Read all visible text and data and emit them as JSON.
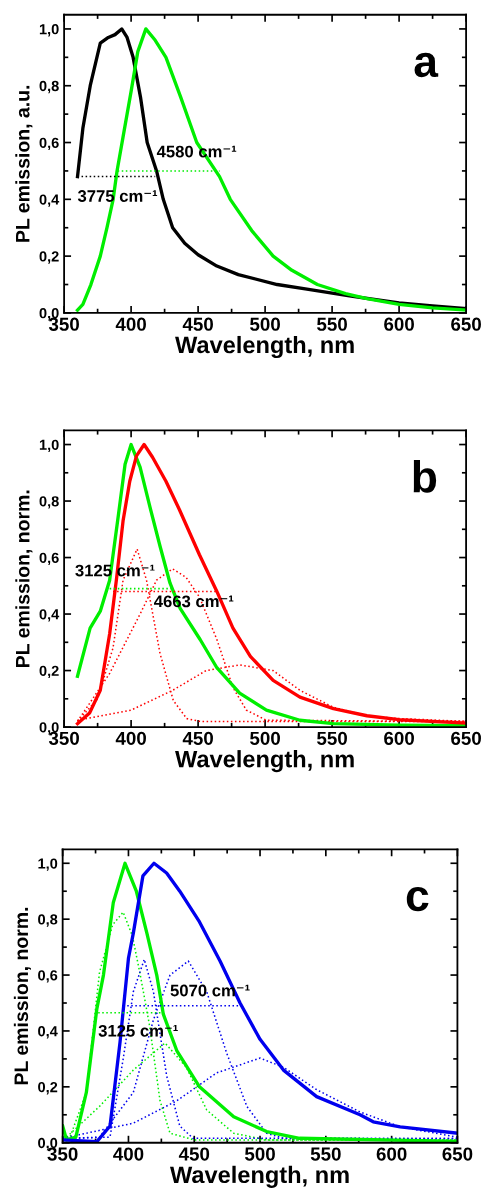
{
  "chart_data": [
    {
      "type": "line",
      "xlabel": "Wavelength, nm",
      "ylabel": "PL emission, a.u.",
      "xlim": [
        350,
        650
      ],
      "ylim": [
        0,
        1.05
      ],
      "xticks": [
        350,
        400,
        450,
        500,
        550,
        600,
        650
      ],
      "yticks": [
        {
          "value": 0,
          "label": "0,0"
        },
        {
          "value": 0.2,
          "label": "0,2"
        },
        {
          "value": 0.4,
          "label": "0,4"
        },
        {
          "value": 0.6,
          "label": "0,6"
        },
        {
          "value": 0.8,
          "label": "0,8"
        },
        {
          "value": 1.0,
          "label": "1,0"
        }
      ],
      "annotations": [
        "a",
        {
          "text": "4580 cm⁻¹",
          "x": 418,
          "y": 0.48
        },
        {
          "text": "3775 cm⁻¹",
          "x": 360,
          "y": 0.48
        }
      ],
      "series": [
        {
          "color": "#000000",
          "line_style": "solid",
          "x": [
            360,
            364,
            369.5,
            377,
            383,
            388,
            393,
            397,
            401.5,
            407,
            412,
            419,
            424,
            431,
            440,
            450,
            464,
            480,
            509,
            530,
            563,
            600,
            625,
            650
          ],
          "values": [
            0.48,
            0.65,
            0.8,
            0.95,
            0.97,
            0.98,
            1.0,
            0.97,
            0.9,
            0.76,
            0.6,
            0.5,
            0.4,
            0.3,
            0.245,
            0.205,
            0.165,
            0.135,
            0.1,
            0.085,
            0.06,
            0.035,
            0.025,
            0.015
          ]
        },
        {
          "color": "#00ee00",
          "line_style": "solid",
          "x": [
            360,
            364,
            370,
            377,
            382,
            386.6,
            389.5,
            394,
            400,
            405,
            411,
            418,
            426,
            437,
            449,
            466,
            474,
            490,
            506,
            520,
            539,
            560,
            576,
            600,
            625,
            650
          ],
          "values": [
            0.01,
            0.03,
            0.1,
            0.2,
            0.3,
            0.4,
            0.5,
            0.62,
            0.78,
            0.92,
            1.0,
            0.96,
            0.9,
            0.76,
            0.6,
            0.48,
            0.4,
            0.29,
            0.2,
            0.15,
            0.1,
            0.068,
            0.05,
            0.03,
            0.018,
            0.01
          ]
        },
        {
          "color": "#000000",
          "line_style": "dotted",
          "x": [
            360,
            418
          ],
          "values": [
            0.48,
            0.48
          ]
        },
        {
          "color": "#00ee00",
          "line_style": "dotted",
          "x": [
            390,
            466
          ],
          "values": [
            0.5,
            0.5
          ]
        }
      ]
    },
    {
      "type": "line",
      "xlabel": "Wavelength, nm",
      "ylabel": "PL emission, norm.",
      "xlim": [
        350,
        650
      ],
      "ylim": [
        0,
        1.05
      ],
      "xticks": [
        350,
        400,
        450,
        500,
        550,
        600,
        650
      ],
      "yticks": [
        {
          "value": 0,
          "label": "0,0"
        },
        {
          "value": 0.2,
          "label": "0,2"
        },
        {
          "value": 0.4,
          "label": "0,4"
        },
        {
          "value": 0.6,
          "label": "0,6"
        },
        {
          "value": 0.8,
          "label": "0,8"
        },
        {
          "value": 1.0,
          "label": "1,0"
        }
      ],
      "annotations": [
        "b",
        {
          "text": "3125 cm⁻¹",
          "x": 384,
          "y": 0.49
        },
        "4663 cm⁻¹"
      ],
      "series": [
        {
          "color": "#ff0000",
          "line_style": "dotted",
          "x": [
            360,
            375,
            386.5,
            394,
            404.5,
            411.5,
            421.6,
            431.5,
            441.5,
            451.5,
            650
          ],
          "values": [
            0.02,
            0.1,
            0.28,
            0.52,
            0.63,
            0.52,
            0.26,
            0.094,
            0.03,
            0.02,
            0.02
          ]
        },
        {
          "color": "#ff0000",
          "line_style": "dotted",
          "x": [
            360,
            384,
            406.7,
            419,
            431,
            441,
            451,
            464,
            476,
            486,
            501,
            650
          ],
          "values": [
            0.02,
            0.19,
            0.4,
            0.52,
            0.56,
            0.53,
            0.46,
            0.31,
            0.14,
            0.06,
            0.024,
            0.02
          ]
        },
        {
          "color": "#ff0000",
          "line_style": "dotted",
          "x": [
            360,
            400,
            431,
            456,
            481,
            506,
            526,
            551,
            576,
            600,
            650
          ],
          "values": [
            0.024,
            0.06,
            0.13,
            0.2,
            0.22,
            0.2,
            0.13,
            0.07,
            0.04,
            0.03,
            0.02
          ]
        },
        {
          "color": "#00ee00",
          "line_style": "solid",
          "x": [
            360,
            369.4,
            377,
            384,
            390.5,
            395.5,
            400,
            406.7,
            414,
            421.6,
            429,
            436.6,
            451.5,
            464,
            481,
            501,
            526,
            551,
            600,
            650
          ],
          "values": [
            0.18,
            0.35,
            0.41,
            0.52,
            0.75,
            0.93,
            1.0,
            0.92,
            0.78,
            0.64,
            0.51,
            0.42,
            0.31,
            0.21,
            0.12,
            0.06,
            0.024,
            0.012,
            0.007,
            0.005
          ]
        },
        {
          "color": "#ff0000",
          "line_style": "solid",
          "x": [
            360,
            369,
            377,
            384,
            389,
            394,
            399,
            404,
            409.7,
            416,
            426,
            436,
            451,
            464,
            476,
            489,
            506,
            526,
            551,
            576,
            600,
            650
          ],
          "values": [
            0.012,
            0.05,
            0.13,
            0.33,
            0.52,
            0.73,
            0.87,
            0.96,
            1.0,
            0.955,
            0.87,
            0.77,
            0.61,
            0.48,
            0.35,
            0.25,
            0.165,
            0.106,
            0.065,
            0.04,
            0.026,
            0.014
          ]
        },
        {
          "color": "#00ee00",
          "line_style": "dotted",
          "x": [
            384,
            431
          ],
          "values": [
            0.49,
            0.49
          ]
        },
        {
          "color": "#ff0000",
          "line_style": "dotted",
          "x": [
            386.5,
            465
          ],
          "values": [
            0.48,
            0.48
          ]
        }
      ]
    },
    {
      "type": "line",
      "xlabel": "Wavelength, nm",
      "ylabel": "PL emission, norm.",
      "xlim": [
        350,
        650
      ],
      "ylim": [
        0,
        1.05
      ],
      "xticks": [
        350,
        400,
        450,
        500,
        550,
        600,
        650
      ],
      "yticks": [
        {
          "value": 0,
          "label": "0,0"
        },
        {
          "value": 0.2,
          "label": "0,2"
        },
        {
          "value": 0.4,
          "label": "0,4"
        },
        {
          "value": 0.6,
          "label": "0,6"
        },
        {
          "value": 0.8,
          "label": "0,8"
        },
        {
          "value": 1.0,
          "label": "1,0"
        }
      ],
      "annotations": [
        "c",
        "5070 cm⁻¹",
        {
          "text": "3125 cm⁻¹",
          "x": 377,
          "y": 0.465
        }
      ],
      "series": [
        {
          "color": "#00ee00",
          "line_style": "dotted",
          "x": [
            350,
            355.6,
            368,
            378,
            388,
            396,
            403,
            409,
            416,
            424,
            431.6,
            450,
            650
          ],
          "values": [
            0.02,
            0.02,
            0.18,
            0.61,
            0.78,
            0.825,
            0.74,
            0.6,
            0.42,
            0.15,
            0.034,
            0.01,
            0.01
          ]
        },
        {
          "color": "#00ee00",
          "line_style": "dotted",
          "x": [
            350,
            353,
            378,
            403.7,
            427.8,
            444,
            459.5,
            480,
            505,
            650
          ],
          "values": [
            0.02,
            0.02,
            0.13,
            0.26,
            0.357,
            0.27,
            0.117,
            0.034,
            0.01,
            0.01
          ]
        },
        {
          "color": "#0000ee",
          "line_style": "dotted",
          "x": [
            350,
            386,
            396,
            403.7,
            412,
            419,
            429,
            439,
            449,
            650
          ],
          "values": [
            0.015,
            0.02,
            0.3,
            0.54,
            0.656,
            0.54,
            0.24,
            0.06,
            0.016,
            0.015
          ]
        },
        {
          "color": "#0000ee",
          "line_style": "dotted",
          "x": [
            350,
            378,
            403.7,
            419,
            431.6,
            445.5,
            459.5,
            474.7,
            490,
            505,
            517.8,
            650
          ],
          "values": [
            0.015,
            0.02,
            0.18,
            0.44,
            0.6,
            0.65,
            0.54,
            0.32,
            0.13,
            0.034,
            0.016,
            0.015
          ]
        },
        {
          "color": "#0000ee",
          "line_style": "dotted",
          "x": [
            350,
            403.7,
            436.7,
            467,
            500,
            517.8,
            543,
            576,
            606.5,
            650
          ],
          "values": [
            0.016,
            0.07,
            0.15,
            0.25,
            0.303,
            0.27,
            0.19,
            0.11,
            0.057,
            0.02
          ]
        },
        {
          "color": "#00ee00",
          "line_style": "solid",
          "x": [
            350,
            353,
            360,
            368,
            376,
            381,
            388.5,
            397.4,
            406,
            414,
            421.5,
            426.5,
            436.7,
            454,
            480,
            505,
            530,
            650
          ],
          "values": [
            0.06,
            0.01,
            0.02,
            0.18,
            0.48,
            0.6,
            0.86,
            1.0,
            0.9,
            0.75,
            0.6,
            0.46,
            0.33,
            0.2,
            0.093,
            0.04,
            0.016,
            0.005
          ]
        },
        {
          "color": "#0000ee",
          "line_style": "solid",
          "x": [
            350,
            376,
            386,
            393.6,
            400,
            403.7,
            411,
            419.4,
            429,
            439,
            454,
            469.6,
            484.8,
            500,
            517.8,
            543,
            576,
            586,
            606.5,
            650
          ],
          "values": [
            0.01,
            0.004,
            0.06,
            0.36,
            0.66,
            0.75,
            0.955,
            1.0,
            0.965,
            0.9,
            0.79,
            0.65,
            0.5,
            0.37,
            0.26,
            0.165,
            0.1,
            0.075,
            0.057,
            0.034
          ]
        },
        {
          "color": "#0000ee",
          "line_style": "dotted",
          "x": [
            396,
            486
          ],
          "values": [
            0.49,
            0.49
          ]
        },
        {
          "color": "#00ee00",
          "line_style": "dotted",
          "x": [
            377,
            426.5
          ],
          "values": [
            0.465,
            0.465
          ]
        }
      ]
    }
  ]
}
